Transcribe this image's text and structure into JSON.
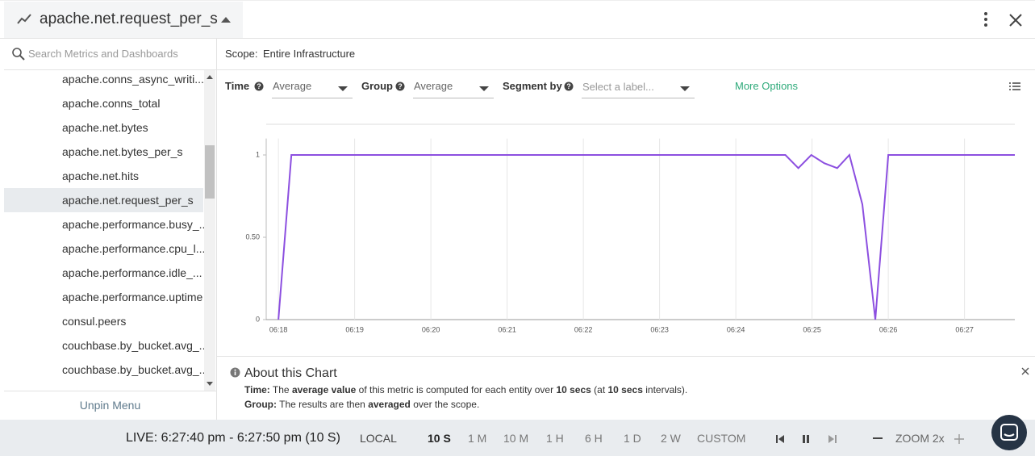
{
  "header": {
    "title": "apache.net.request_per_s"
  },
  "sidebar": {
    "search_placeholder": "Search Metrics and Dashboards",
    "items": [
      "apache.conns_async_writi...",
      "apache.conns_total",
      "apache.net.bytes",
      "apache.net.bytes_per_s",
      "apache.net.hits",
      "apache.net.request_per_s",
      "apache.performance.busy_...",
      "apache.performance.cpu_l...",
      "apache.performance.idle_...",
      "apache.performance.uptime",
      "consul.peers",
      "couchbase.by_bucket.avg_...",
      "couchbase.by_bucket.avg_..."
    ],
    "selected": 5,
    "unpin": "Unpin Menu"
  },
  "scope": {
    "label": "Scope:",
    "value": "Entire Infrastructure"
  },
  "controls": {
    "time_label": "Time",
    "time_value": "Average",
    "group_label": "Group",
    "group_value": "Average",
    "segment_label": "Segment by",
    "segment_placeholder": "Select a label...",
    "more": "More Options"
  },
  "chart_data": {
    "type": "line",
    "x": [
      18.0,
      18.17,
      24.65,
      24.82,
      24.99,
      25.16,
      25.33,
      25.49,
      25.66,
      25.83,
      26.0,
      27.66
    ],
    "series": [
      {
        "name": "apache.net.request_per_s",
        "color": "#8c4fe0",
        "values": [
          0,
          1,
          1,
          0.92,
          1,
          0.95,
          0.92,
          1,
          0.7,
          0,
          1,
          1
        ]
      }
    ],
    "xlim": [
      17.84,
      27.66
    ],
    "ylim": [
      0,
      1.1
    ],
    "xticks": [
      {
        "value": 18,
        "label": "06:18"
      },
      {
        "value": 19,
        "label": "06:19"
      },
      {
        "value": 20,
        "label": "06:20"
      },
      {
        "value": 21,
        "label": "06:21"
      },
      {
        "value": 22,
        "label": "06:22"
      },
      {
        "value": 23,
        "label": "06:23"
      },
      {
        "value": 24,
        "label": "06:24"
      },
      {
        "value": 25,
        "label": "06:25"
      },
      {
        "value": 26,
        "label": "06:26"
      },
      {
        "value": 27,
        "label": "06:27"
      }
    ],
    "yticks": [
      0,
      {
        "value": 0.5,
        "label": "0.50"
      },
      1
    ],
    "grid": true
  },
  "about": {
    "title": "About this Chart",
    "time": [
      "Time:",
      " The ",
      "average value",
      " of this metric is computed for each entity over ",
      "10 secs",
      " (at ",
      "10 secs",
      " intervals)."
    ],
    "group": [
      "Group:",
      " The results are then ",
      "averaged",
      " over the scope."
    ]
  },
  "footer": {
    "live": "LIVE: 6:27:40 pm - 6:27:50 pm (10 S)",
    "local": "LOCAL",
    "ranges": [
      "10 S",
      "1 M",
      "10 M",
      "1 H",
      "6 H",
      "1 D",
      "2 W",
      "CUSTOM"
    ],
    "active": 0,
    "zoom": "ZOOM 2x"
  }
}
